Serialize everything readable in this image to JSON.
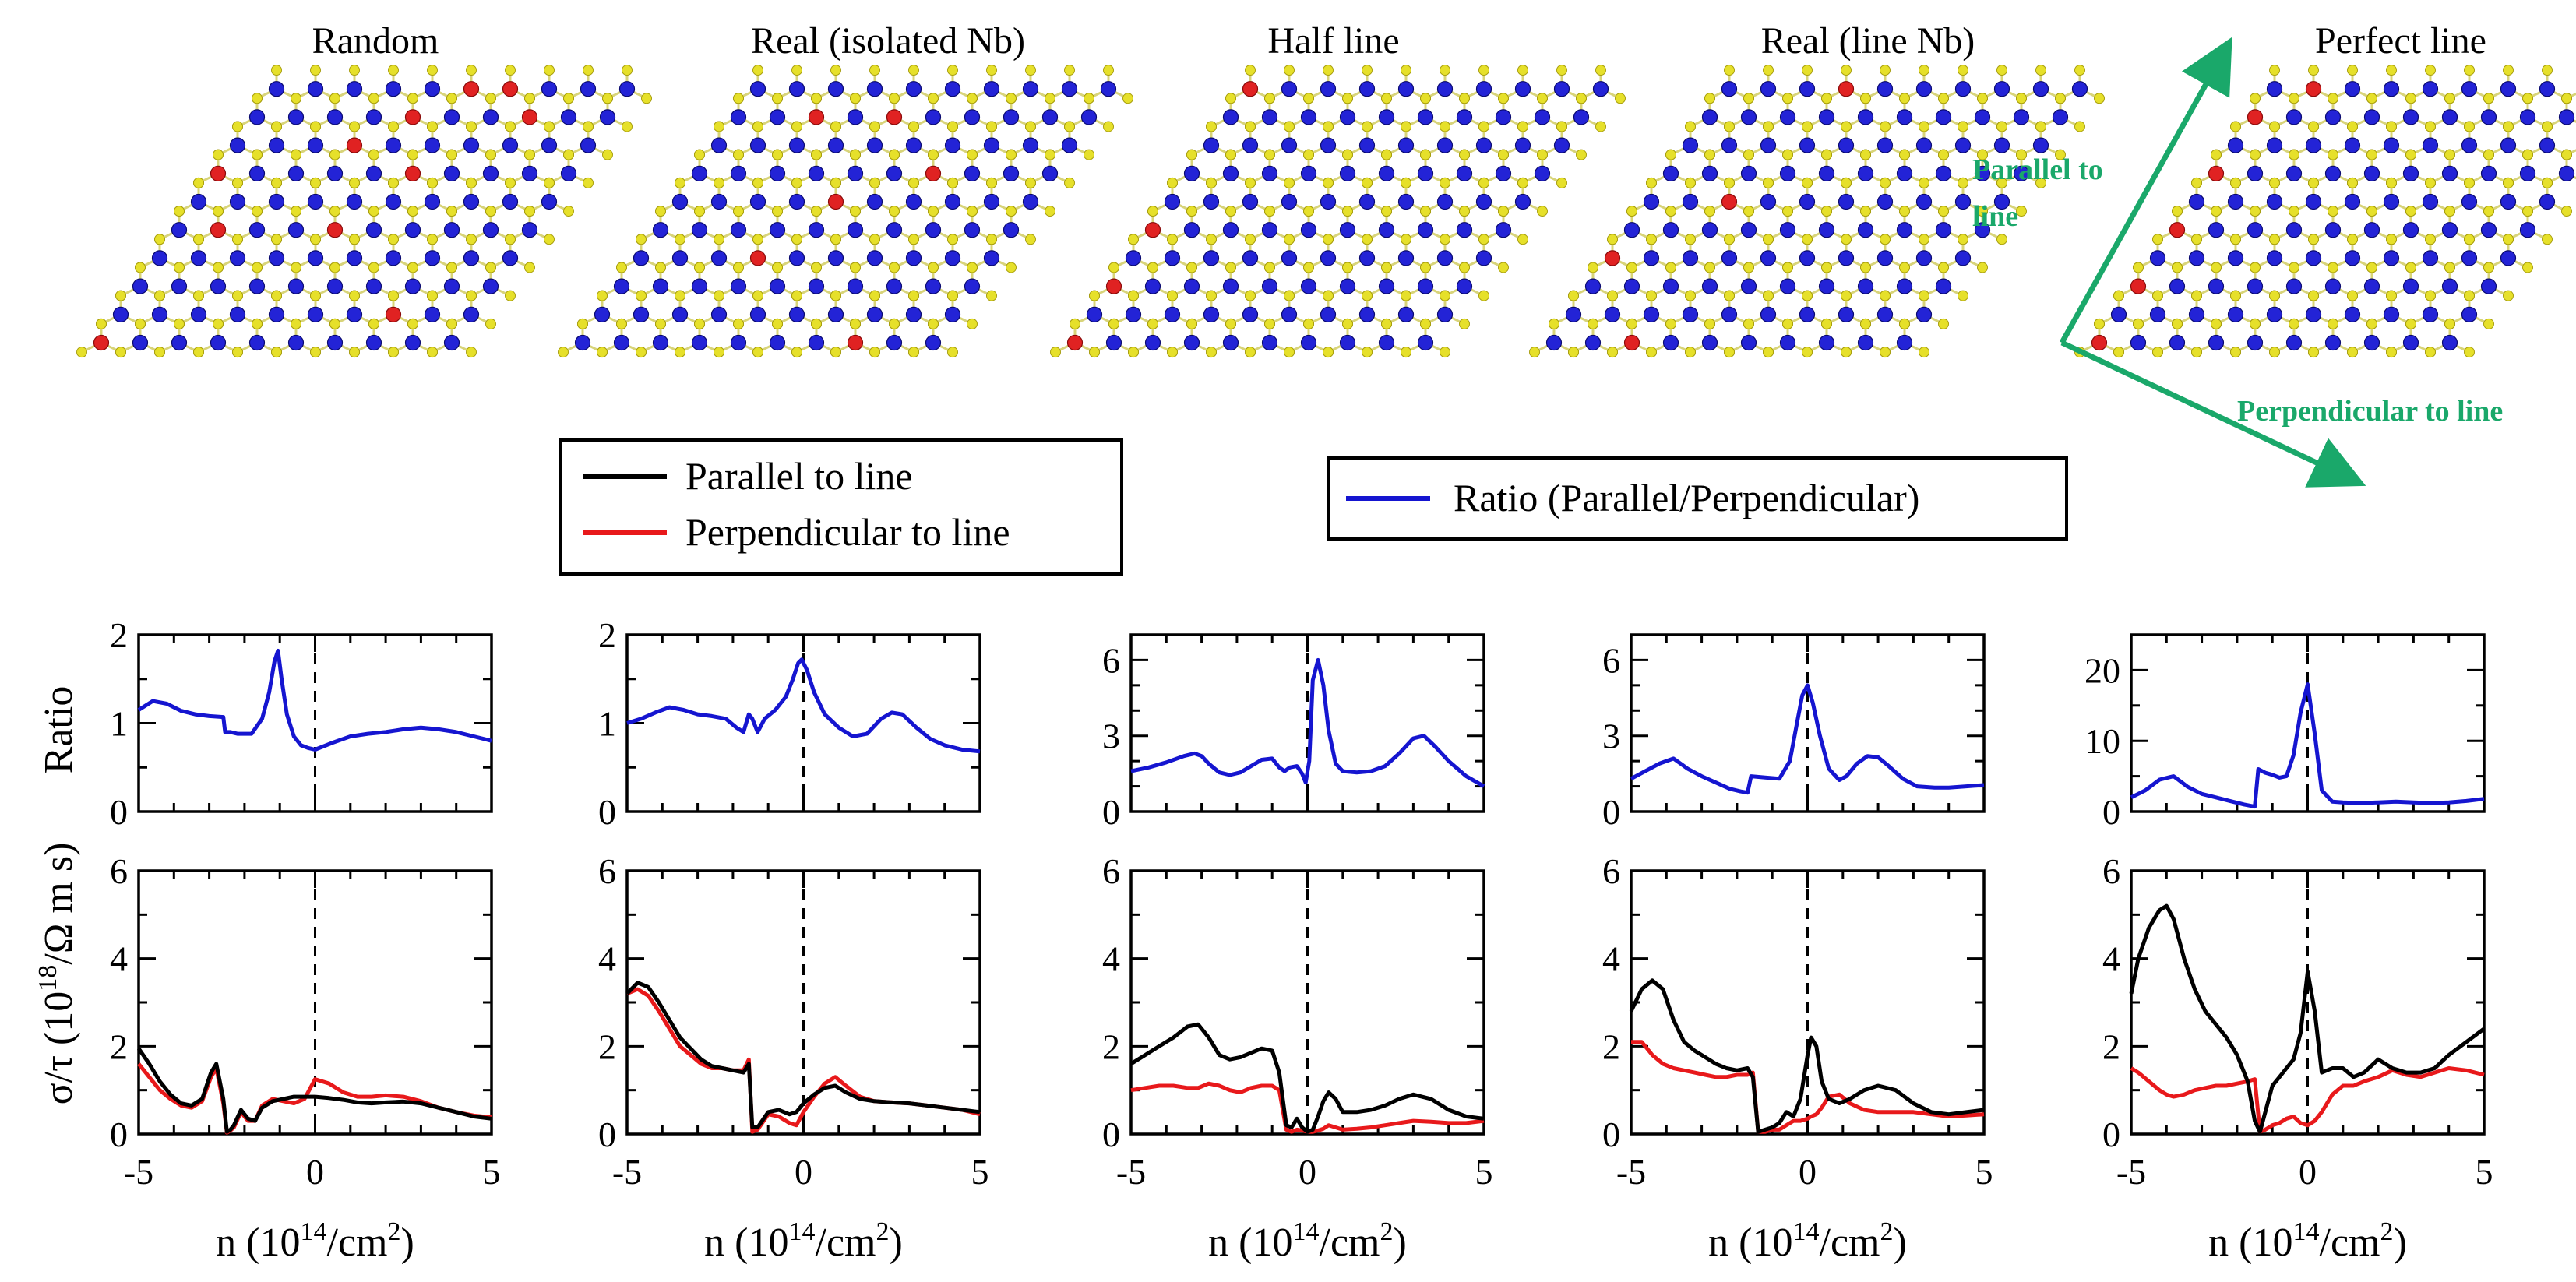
{
  "colors": {
    "parallel": "#000000",
    "perpendicular": "#e8191b",
    "ratio": "#1515d0",
    "nb_atom": "#e02222",
    "mo_atom": "#2323d6",
    "s_atom": "#e6e02a",
    "bond": "#d8d47a",
    "direction_arrow": "#1aa86a"
  },
  "structures": {
    "titles": [
      "Random",
      "Real (isolated Nb)",
      "Half line",
      "Real (line Nb)",
      "Perfect line"
    ],
    "axis_parallel_label_1": "Parallel to",
    "axis_parallel_label_2": "line",
    "axis_perpendicular_label": "Perpendicular to line",
    "arrow_icon": "direction-arrows-icon"
  },
  "legends": {
    "left": [
      {
        "label": "Parallel to line",
        "color": "#000000"
      },
      {
        "label": "Perpendicular to line",
        "color": "#e8191b"
      }
    ],
    "right": [
      {
        "label": "Ratio (Parallel/Perpendicular)",
        "color": "#1515d0"
      }
    ]
  },
  "axis_labels": {
    "ratio_ylabel": "Ratio",
    "sigma_ylabel_prefix": "σ/τ (10",
    "sigma_ylabel_sup": "18",
    "sigma_ylabel_suffix": "/Ω m s)",
    "xlabel_prefix": "n (10",
    "xlabel_sup": "14",
    "xlabel_suffix": "/cm",
    "xlabel_sup2": "2",
    "xlabel_close": ")"
  },
  "chart_data": [
    {
      "type": "line",
      "panel": "Random",
      "xlim": [
        -5,
        5
      ],
      "xticks": [
        -5,
        0,
        5
      ],
      "ratio": {
        "ylim": [
          0,
          2
        ],
        "yticks": [
          0,
          1,
          2
        ],
        "x": [
          -5,
          -4.6,
          -4.2,
          -3.8,
          -3.4,
          -3.0,
          -2.6,
          -2.55,
          -2.4,
          -2.2,
          -1.8,
          -1.5,
          -1.3,
          -1.15,
          -1.05,
          -0.95,
          -0.8,
          -0.6,
          -0.4,
          -0.2,
          0,
          0.5,
          1,
          1.5,
          2,
          2.5,
          3,
          3.5,
          4,
          4.5,
          5
        ],
        "y": [
          1.15,
          1.25,
          1.22,
          1.14,
          1.1,
          1.08,
          1.07,
          0.9,
          0.9,
          0.88,
          0.88,
          1.05,
          1.35,
          1.7,
          1.82,
          1.5,
          1.1,
          0.85,
          0.75,
          0.72,
          0.7,
          0.78,
          0.85,
          0.88,
          0.9,
          0.93,
          0.95,
          0.93,
          0.9,
          0.85,
          0.8
        ]
      },
      "parallel": {
        "ylim": [
          0,
          6
        ],
        "yticks": [
          0,
          2,
          4,
          6
        ],
        "x": [
          -5,
          -4.7,
          -4.4,
          -4.1,
          -3.8,
          -3.5,
          -3.2,
          -2.95,
          -2.8,
          -2.6,
          -2.5,
          -2.4,
          -2.3,
          -2.1,
          -1.9,
          -1.7,
          -1.5,
          -1.2,
          -0.9,
          -0.6,
          -0.3,
          0,
          0.4,
          0.8,
          1.2,
          1.6,
          2,
          2.5,
          3,
          3.5,
          4,
          4.5,
          5
        ],
        "y": [
          1.95,
          1.6,
          1.2,
          0.9,
          0.7,
          0.65,
          0.8,
          1.4,
          1.6,
          0.8,
          0.05,
          0.1,
          0.2,
          0.55,
          0.35,
          0.3,
          0.6,
          0.75,
          0.8,
          0.85,
          0.85,
          0.85,
          0.82,
          0.78,
          0.72,
          0.7,
          0.72,
          0.74,
          0.7,
          0.6,
          0.5,
          0.4,
          0.35
        ]
      },
      "perpendicular": {
        "x": [
          -5,
          -4.7,
          -4.4,
          -4.1,
          -3.8,
          -3.5,
          -3.2,
          -2.95,
          -2.8,
          -2.6,
          -2.5,
          -2.4,
          -2.3,
          -2.1,
          -1.9,
          -1.7,
          -1.5,
          -1.2,
          -0.9,
          -0.6,
          -0.3,
          0,
          0.4,
          0.8,
          1.2,
          1.6,
          2,
          2.5,
          3,
          3.5,
          4,
          4.5,
          5
        ],
        "y": [
          1.6,
          1.3,
          1.0,
          0.8,
          0.65,
          0.6,
          0.75,
          1.3,
          1.5,
          0.7,
          0.03,
          0.08,
          0.15,
          0.5,
          0.3,
          0.3,
          0.65,
          0.8,
          0.75,
          0.7,
          0.8,
          1.25,
          1.15,
          0.95,
          0.85,
          0.85,
          0.88,
          0.85,
          0.75,
          0.6,
          0.5,
          0.42,
          0.38
        ]
      }
    },
    {
      "type": "line",
      "panel": "Real (isolated Nb)",
      "xlim": [
        -5,
        5
      ],
      "xticks": [
        -5,
        0,
        5
      ],
      "ratio": {
        "ylim": [
          0,
          2
        ],
        "yticks": [
          0,
          1,
          2
        ],
        "x": [
          -5,
          -4.6,
          -4.2,
          -3.8,
          -3.4,
          -3.0,
          -2.6,
          -2.2,
          -1.9,
          -1.7,
          -1.55,
          -1.45,
          -1.3,
          -1.1,
          -0.8,
          -0.5,
          -0.3,
          -0.15,
          -0.05,
          0.1,
          0.3,
          0.6,
          1,
          1.4,
          1.8,
          2.2,
          2.5,
          2.8,
          3.2,
          3.6,
          4,
          4.5,
          5
        ],
        "y": [
          1.0,
          1.05,
          1.12,
          1.18,
          1.15,
          1.1,
          1.08,
          1.05,
          0.95,
          0.9,
          1.1,
          1.05,
          0.9,
          1.05,
          1.15,
          1.3,
          1.5,
          1.68,
          1.72,
          1.6,
          1.35,
          1.1,
          0.95,
          0.85,
          0.88,
          1.05,
          1.12,
          1.1,
          0.95,
          0.82,
          0.75,
          0.7,
          0.68
        ]
      },
      "parallel": {
        "ylim": [
          0,
          6
        ],
        "yticks": [
          0,
          2,
          4,
          6
        ],
        "x": [
          -5,
          -4.7,
          -4.4,
          -4.1,
          -3.8,
          -3.5,
          -3.2,
          -2.9,
          -2.6,
          -2.3,
          -2.0,
          -1.7,
          -1.55,
          -1.45,
          -1.3,
          -1.0,
          -0.7,
          -0.4,
          -0.2,
          0,
          0.3,
          0.6,
          0.9,
          1.2,
          1.6,
          2,
          2.5,
          3,
          3.5,
          4,
          4.5,
          5
        ],
        "y": [
          3.2,
          3.45,
          3.35,
          3.0,
          2.6,
          2.2,
          1.95,
          1.7,
          1.55,
          1.5,
          1.45,
          1.4,
          1.6,
          0.15,
          0.15,
          0.5,
          0.55,
          0.45,
          0.5,
          0.7,
          0.9,
          1.05,
          1.1,
          0.95,
          0.8,
          0.75,
          0.72,
          0.7,
          0.65,
          0.6,
          0.55,
          0.5
        ]
      },
      "perpendicular": {
        "x": [
          -5,
          -4.7,
          -4.4,
          -4.1,
          -3.8,
          -3.5,
          -3.2,
          -2.9,
          -2.6,
          -2.3,
          -2.0,
          -1.7,
          -1.55,
          -1.45,
          -1.3,
          -1.0,
          -0.7,
          -0.4,
          -0.2,
          0,
          0.3,
          0.6,
          0.9,
          1.2,
          1.6,
          2,
          2.5,
          3,
          3.5,
          4,
          4.5,
          5
        ],
        "y": [
          3.2,
          3.3,
          3.15,
          2.8,
          2.4,
          2.0,
          1.8,
          1.6,
          1.5,
          1.5,
          1.45,
          1.45,
          1.7,
          0.05,
          0.1,
          0.45,
          0.4,
          0.25,
          0.2,
          0.5,
          0.85,
          1.15,
          1.3,
          1.1,
          0.85,
          0.75,
          0.72,
          0.7,
          0.65,
          0.6,
          0.55,
          0.45
        ]
      }
    },
    {
      "type": "line",
      "panel": "Half line",
      "xlim": [
        -5,
        5
      ],
      "xticks": [
        -5,
        0,
        5
      ],
      "ratio": {
        "ylim": [
          0,
          7
        ],
        "yticks": [
          0,
          3,
          6
        ],
        "x": [
          -5,
          -4.5,
          -4,
          -3.5,
          -3.2,
          -3.0,
          -2.8,
          -2.5,
          -2.2,
          -1.9,
          -1.6,
          -1.3,
          -1.0,
          -0.8,
          -0.65,
          -0.5,
          -0.3,
          -0.15,
          -0.05,
          0.05,
          0.15,
          0.3,
          0.45,
          0.6,
          0.8,
          1.0,
          1.4,
          1.8,
          2.2,
          2.6,
          3.0,
          3.3,
          3.6,
          4,
          4.5,
          5
        ],
        "y": [
          1.6,
          1.75,
          1.95,
          2.2,
          2.3,
          2.2,
          1.9,
          1.55,
          1.45,
          1.55,
          1.8,
          2.05,
          2.1,
          1.75,
          1.6,
          1.75,
          1.8,
          1.5,
          1.15,
          2.0,
          5.2,
          6.0,
          5.0,
          3.2,
          1.9,
          1.6,
          1.55,
          1.6,
          1.8,
          2.3,
          2.9,
          3.0,
          2.6,
          2.0,
          1.4,
          1.0
        ]
      },
      "parallel": {
        "ylim": [
          0,
          6
        ],
        "yticks": [
          0,
          2,
          4,
          6
        ],
        "x": [
          -5,
          -4.6,
          -4.2,
          -3.8,
          -3.4,
          -3.1,
          -2.8,
          -2.5,
          -2.2,
          -1.9,
          -1.6,
          -1.3,
          -1.0,
          -0.8,
          -0.6,
          -0.45,
          -0.3,
          -0.15,
          0,
          0.15,
          0.3,
          0.45,
          0.6,
          0.8,
          1.0,
          1.4,
          1.8,
          2.2,
          2.6,
          3.0,
          3.5,
          4,
          4.5,
          5
        ],
        "y": [
          1.6,
          1.8,
          2.0,
          2.2,
          2.45,
          2.5,
          2.2,
          1.8,
          1.7,
          1.75,
          1.85,
          1.95,
          1.9,
          1.4,
          0.2,
          0.15,
          0.35,
          0.15,
          0.05,
          0.1,
          0.4,
          0.75,
          0.95,
          0.8,
          0.5,
          0.5,
          0.55,
          0.65,
          0.8,
          0.9,
          0.8,
          0.55,
          0.4,
          0.35
        ]
      },
      "perpendicular": {
        "x": [
          -5,
          -4.6,
          -4.2,
          -3.8,
          -3.4,
          -3.1,
          -2.8,
          -2.5,
          -2.2,
          -1.9,
          -1.6,
          -1.3,
          -1.0,
          -0.8,
          -0.6,
          -0.45,
          -0.3,
          -0.15,
          0,
          0.15,
          0.3,
          0.45,
          0.6,
          0.8,
          1.0,
          1.4,
          1.8,
          2.2,
          2.6,
          3.0,
          3.5,
          4,
          4.5,
          5
        ],
        "y": [
          1.0,
          1.05,
          1.1,
          1.1,
          1.05,
          1.05,
          1.15,
          1.1,
          1.0,
          0.95,
          1.05,
          1.1,
          1.1,
          1.0,
          0.1,
          0.05,
          0.1,
          0.08,
          0.05,
          0.05,
          0.08,
          0.12,
          0.2,
          0.15,
          0.1,
          0.12,
          0.15,
          0.2,
          0.25,
          0.3,
          0.28,
          0.25,
          0.25,
          0.3
        ]
      }
    },
    {
      "type": "line",
      "panel": "Real (line Nb)",
      "xlim": [
        -5,
        5
      ],
      "xticks": [
        -5,
        0,
        5
      ],
      "ratio": {
        "ylim": [
          0,
          7
        ],
        "yticks": [
          0,
          3,
          6
        ],
        "x": [
          -5,
          -4.6,
          -4.2,
          -3.8,
          -3.4,
          -3.0,
          -2.6,
          -2.2,
          -1.9,
          -1.7,
          -1.6,
          -1.2,
          -0.8,
          -0.5,
          -0.3,
          -0.15,
          0,
          0.15,
          0.35,
          0.6,
          0.9,
          1.1,
          1.4,
          1.7,
          2.0,
          2.3,
          2.7,
          3.1,
          3.6,
          4,
          4.5,
          5
        ],
        "y": [
          1.3,
          1.6,
          1.9,
          2.1,
          1.7,
          1.4,
          1.15,
          0.9,
          0.8,
          0.75,
          1.4,
          1.35,
          1.3,
          2.0,
          3.5,
          4.6,
          5.0,
          4.3,
          3.0,
          1.7,
          1.25,
          1.4,
          1.9,
          2.2,
          2.15,
          1.8,
          1.3,
          1.0,
          0.95,
          0.95,
          1.0,
          1.05
        ]
      },
      "parallel": {
        "ylim": [
          0,
          6
        ],
        "yticks": [
          0,
          2,
          4,
          6
        ],
        "x": [
          -5,
          -4.7,
          -4.4,
          -4.1,
          -3.8,
          -3.5,
          -3.2,
          -2.9,
          -2.6,
          -2.3,
          -2.0,
          -1.7,
          -1.55,
          -1.4,
          -1.2,
          -1.0,
          -0.8,
          -0.6,
          -0.4,
          -0.2,
          0,
          0.1,
          0.25,
          0.4,
          0.6,
          0.9,
          1.2,
          1.6,
          2,
          2.5,
          3,
          3.5,
          4,
          4.5,
          5
        ],
        "y": [
          2.8,
          3.3,
          3.5,
          3.3,
          2.6,
          2.1,
          1.9,
          1.75,
          1.6,
          1.5,
          1.45,
          1.5,
          1.3,
          0.05,
          0.1,
          0.15,
          0.25,
          0.5,
          0.4,
          0.8,
          1.8,
          2.2,
          2.0,
          1.2,
          0.8,
          0.7,
          0.8,
          1.0,
          1.1,
          1.0,
          0.7,
          0.5,
          0.45,
          0.5,
          0.55
        ]
      },
      "perpendicular": {
        "x": [
          -5,
          -4.7,
          -4.4,
          -4.1,
          -3.8,
          -3.5,
          -3.2,
          -2.9,
          -2.6,
          -2.3,
          -2.0,
          -1.7,
          -1.55,
          -1.4,
          -1.2,
          -1.0,
          -0.8,
          -0.6,
          -0.4,
          -0.2,
          0,
          0.1,
          0.25,
          0.4,
          0.6,
          0.9,
          1.2,
          1.6,
          2,
          2.5,
          3,
          3.5,
          4,
          4.5,
          5
        ],
        "y": [
          2.1,
          2.1,
          1.8,
          1.6,
          1.5,
          1.45,
          1.4,
          1.35,
          1.3,
          1.3,
          1.35,
          1.35,
          1.4,
          0.05,
          0.05,
          0.1,
          0.1,
          0.2,
          0.3,
          0.3,
          0.35,
          0.4,
          0.45,
          0.6,
          0.85,
          0.9,
          0.7,
          0.55,
          0.5,
          0.5,
          0.5,
          0.45,
          0.4,
          0.42,
          0.45
        ]
      }
    },
    {
      "type": "line",
      "panel": "Perfect line",
      "xlim": [
        -5,
        5
      ],
      "xticks": [
        -5,
        0,
        5
      ],
      "ratio": {
        "ylim": [
          0,
          25
        ],
        "yticks": [
          0,
          10,
          20
        ],
        "x": [
          -5,
          -4.6,
          -4.2,
          -3.8,
          -3.4,
          -3.0,
          -2.6,
          -2.2,
          -1.8,
          -1.5,
          -1.4,
          -1.2,
          -1.0,
          -0.8,
          -0.6,
          -0.4,
          -0.2,
          0,
          0.2,
          0.4,
          0.7,
          1.0,
          1.5,
          2,
          2.5,
          3,
          3.5,
          4,
          4.5,
          5
        ],
        "y": [
          2,
          3.0,
          4.5,
          5.0,
          3.5,
          2.5,
          2.0,
          1.5,
          1.0,
          0.7,
          6.0,
          5.5,
          5.2,
          4.8,
          5.0,
          8.0,
          14.0,
          18.0,
          11.0,
          3.0,
          1.4,
          1.3,
          1.2,
          1.3,
          1.4,
          1.3,
          1.2,
          1.3,
          1.5,
          1.8
        ]
      },
      "parallel": {
        "ylim": [
          0,
          6
        ],
        "yticks": [
          0,
          2,
          4,
          6
        ],
        "x": [
          -5,
          -4.8,
          -4.5,
          -4.2,
          -4.0,
          -3.8,
          -3.5,
          -3.2,
          -2.9,
          -2.6,
          -2.3,
          -2.0,
          -1.7,
          -1.5,
          -1.35,
          -1.2,
          -1.0,
          -0.8,
          -0.6,
          -0.4,
          -0.2,
          0,
          0.2,
          0.4,
          0.7,
          1.0,
          1.3,
          1.6,
          2,
          2.4,
          2.8,
          3.2,
          3.6,
          4,
          4.5,
          5
        ],
        "y": [
          3.2,
          4.0,
          4.7,
          5.1,
          5.2,
          4.9,
          4.0,
          3.3,
          2.8,
          2.5,
          2.2,
          1.8,
          1.2,
          0.3,
          0.05,
          0.5,
          1.1,
          1.3,
          1.5,
          1.7,
          2.3,
          3.7,
          2.8,
          1.4,
          1.5,
          1.5,
          1.3,
          1.4,
          1.7,
          1.5,
          1.4,
          1.4,
          1.5,
          1.8,
          2.1,
          2.4
        ]
      },
      "perpendicular": {
        "x": [
          -5,
          -4.8,
          -4.5,
          -4.2,
          -4.0,
          -3.8,
          -3.5,
          -3.2,
          -2.9,
          -2.6,
          -2.3,
          -2.0,
          -1.7,
          -1.5,
          -1.35,
          -1.2,
          -1.0,
          -0.8,
          -0.6,
          -0.4,
          -0.2,
          0,
          0.2,
          0.4,
          0.7,
          1.0,
          1.3,
          1.6,
          2,
          2.4,
          2.8,
          3.2,
          3.6,
          4,
          4.5,
          5
        ],
        "y": [
          1.5,
          1.4,
          1.2,
          1.0,
          0.9,
          0.85,
          0.9,
          1.0,
          1.05,
          1.1,
          1.1,
          1.15,
          1.2,
          1.25,
          0.05,
          0.1,
          0.2,
          0.25,
          0.35,
          0.4,
          0.25,
          0.2,
          0.3,
          0.5,
          0.9,
          1.1,
          1.1,
          1.2,
          1.3,
          1.45,
          1.35,
          1.3,
          1.4,
          1.5,
          1.45,
          1.35
        ]
      }
    }
  ]
}
